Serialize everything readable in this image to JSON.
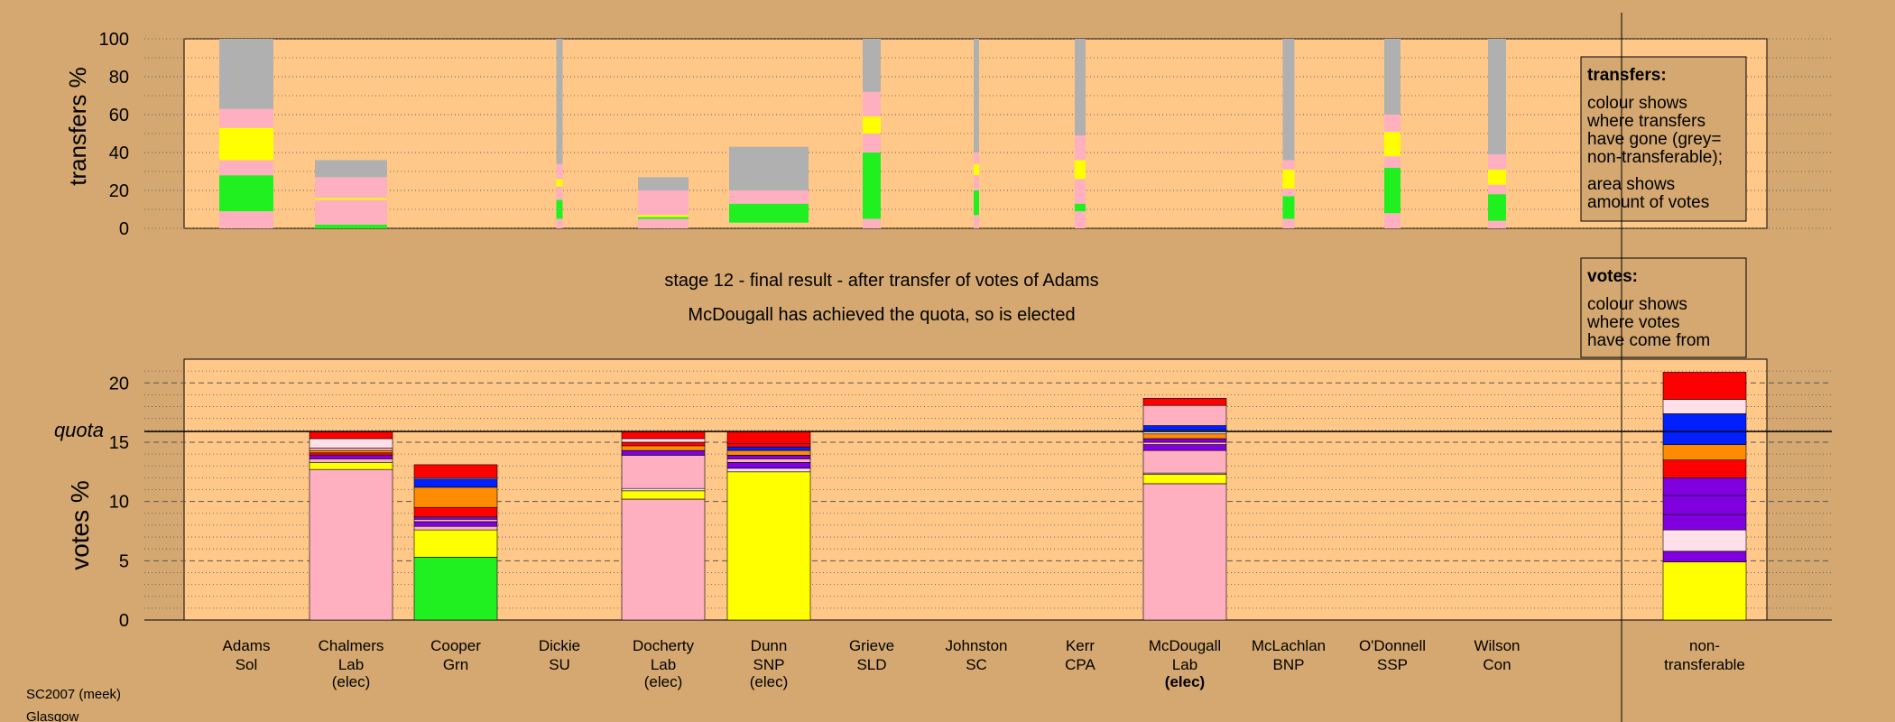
{
  "chart_data": [
    {
      "type": "bar",
      "stacked": true,
      "ylabel": "transfers %",
      "ylim": [
        0,
        100
      ],
      "yticks": [
        0,
        20,
        40,
        60,
        80,
        100
      ],
      "legend": {
        "title": "transfers:",
        "lines": [
          "colour shows",
          "where transfers",
          "have gone (grey=",
          "non-transferable);",
          "area shows",
          "amount of votes"
        ]
      },
      "note": "bar width shows amount of votes transferred",
      "bars": [
        {
          "candidate": "Adams",
          "width": 0.6,
          "segments": [
            {
              "color": "#ffb0c0",
              "from": 0,
              "to": 9
            },
            {
              "color": "#20f020",
              "from": 9,
              "to": 28
            },
            {
              "color": "#ffb0c0",
              "from": 28,
              "to": 36
            },
            {
              "color": "#ffff00",
              "from": 36,
              "to": 53
            },
            {
              "color": "#ffb0c0",
              "from": 53,
              "to": 63
            },
            {
              "color": "#b0b0b0",
              "from": 63,
              "to": 100
            }
          ]
        },
        {
          "candidate": "Chalmers",
          "width": 0.8,
          "segments": [
            {
              "color": "#20f020",
              "from": 0,
              "to": 2
            },
            {
              "color": "#ffb0c0",
              "from": 2,
              "to": 15
            },
            {
              "color": "#ffff00",
              "from": 15,
              "to": 16
            },
            {
              "color": "#ffb0c0",
              "from": 16,
              "to": 27
            },
            {
              "color": "#b0b0b0",
              "from": 27,
              "to": 36
            }
          ]
        },
        {
          "candidate": "Dickie",
          "width": 0.07,
          "segments": [
            {
              "color": "#ffb0c0",
              "from": 0,
              "to": 5
            },
            {
              "color": "#20f020",
              "from": 5,
              "to": 15
            },
            {
              "color": "#ffb0c0",
              "from": 15,
              "to": 22
            },
            {
              "color": "#ffff00",
              "from": 22,
              "to": 26
            },
            {
              "color": "#ffb0c0",
              "from": 26,
              "to": 34
            },
            {
              "color": "#b0b0b0",
              "from": 34,
              "to": 100
            }
          ]
        },
        {
          "candidate": "Docherty",
          "width": 0.56,
          "segments": [
            {
              "color": "#ffb0c0",
              "from": 0,
              "to": 5
            },
            {
              "color": "#20f020",
              "from": 5,
              "to": 6
            },
            {
              "color": "#ffff00",
              "from": 6,
              "to": 7
            },
            {
              "color": "#ffb0c0",
              "from": 7,
              "to": 20
            },
            {
              "color": "#b0b0b0",
              "from": 20,
              "to": 27
            }
          ]
        },
        {
          "candidate": "Dunn",
          "width": 0.88,
          "segments": [
            {
              "color": "#20f020",
              "from": 3,
              "to": 13
            },
            {
              "color": "#ffb0c0",
              "from": 13,
              "to": 20
            },
            {
              "color": "#b0b0b0",
              "from": 20,
              "to": 43
            }
          ]
        },
        {
          "candidate": "Grieve",
          "width": 0.2,
          "segments": [
            {
              "color": "#ffb0c0",
              "from": 0,
              "to": 5
            },
            {
              "color": "#20f020",
              "from": 5,
              "to": 40
            },
            {
              "color": "#ffb0c0",
              "from": 40,
              "to": 50
            },
            {
              "color": "#ffff00",
              "from": 50,
              "to": 59
            },
            {
              "color": "#ffb0c0",
              "from": 59,
              "to": 72
            },
            {
              "color": "#b0b0b0",
              "from": 72,
              "to": 100
            }
          ]
        },
        {
          "candidate": "Johnston",
          "width": 0.06,
          "segments": [
            {
              "color": "#ffb0c0",
              "from": 0,
              "to": 7
            },
            {
              "color": "#20f020",
              "from": 7,
              "to": 20
            },
            {
              "color": "#ffb0c0",
              "from": 20,
              "to": 28
            },
            {
              "color": "#ffff00",
              "from": 28,
              "to": 34
            },
            {
              "color": "#ffb0c0",
              "from": 34,
              "to": 40
            },
            {
              "color": "#b0b0b0",
              "from": 40,
              "to": 100
            }
          ]
        },
        {
          "candidate": "Kerr",
          "width": 0.12,
          "segments": [
            {
              "color": "#ffb0c0",
              "from": 0,
              "to": 9
            },
            {
              "color": "#20f020",
              "from": 9,
              "to": 13
            },
            {
              "color": "#ffb0c0",
              "from": 13,
              "to": 26
            },
            {
              "color": "#ffff00",
              "from": 26,
              "to": 36
            },
            {
              "color": "#ffb0c0",
              "from": 36,
              "to": 49
            },
            {
              "color": "#b0b0b0",
              "from": 49,
              "to": 100
            }
          ]
        },
        {
          "candidate": "McLachlan",
          "width": 0.13,
          "segments": [
            {
              "color": "#ffb0c0",
              "from": 0,
              "to": 5
            },
            {
              "color": "#20f020",
              "from": 5,
              "to": 17
            },
            {
              "color": "#ffb0c0",
              "from": 17,
              "to": 21
            },
            {
              "color": "#ffff00",
              "from": 21,
              "to": 31
            },
            {
              "color": "#ffb0c0",
              "from": 31,
              "to": 36
            },
            {
              "color": "#b0b0b0",
              "from": 36,
              "to": 100
            }
          ]
        },
        {
          "candidate": "O'Donnell",
          "width": 0.18,
          "segments": [
            {
              "color": "#ffb0c0",
              "from": 0,
              "to": 8
            },
            {
              "color": "#20f020",
              "from": 8,
              "to": 32
            },
            {
              "color": "#ffb0c0",
              "from": 32,
              "to": 38
            },
            {
              "color": "#ffff00",
              "from": 38,
              "to": 51
            },
            {
              "color": "#ffb0c0",
              "from": 51,
              "to": 60
            },
            {
              "color": "#b0b0b0",
              "from": 60,
              "to": 100
            }
          ]
        },
        {
          "candidate": "Wilson",
          "width": 0.2,
          "segments": [
            {
              "color": "#ffb0c0",
              "from": 0,
              "to": 4
            },
            {
              "color": "#20f020",
              "from": 4,
              "to": 18
            },
            {
              "color": "#ffb0c0",
              "from": 18,
              "to": 23
            },
            {
              "color": "#ffff00",
              "from": 23,
              "to": 31
            },
            {
              "color": "#ffb0c0",
              "from": 31,
              "to": 39
            },
            {
              "color": "#b0b0b0",
              "from": 39,
              "to": 100
            }
          ]
        }
      ]
    },
    {
      "type": "bar",
      "stacked": true,
      "title": "stage 12 - final result - after transfer of votes of Adams",
      "subtitle": "McDougall has achieved the quota, so is elected",
      "ylabel": "votes %",
      "ylim": [
        0,
        22
      ],
      "yticks": [
        0,
        5,
        10,
        15,
        20
      ],
      "quota": {
        "label": "quota",
        "value": 15.9
      },
      "legend": {
        "title": "votes:",
        "lines": [
          "colour shows",
          "where votes",
          "have come from"
        ]
      },
      "categories": [
        {
          "name": "Adams",
          "party": "Sol",
          "status": ""
        },
        {
          "name": "Chalmers",
          "party": "Lab",
          "status": "(elec)"
        },
        {
          "name": "Cooper",
          "party": "Grn",
          "status": ""
        },
        {
          "name": "Dickie",
          "party": "SU",
          "status": ""
        },
        {
          "name": "Docherty",
          "party": "Lab",
          "status": "(elec)"
        },
        {
          "name": "Dunn",
          "party": "SNP",
          "status": "(elec)"
        },
        {
          "name": "Grieve",
          "party": "SLD",
          "status": ""
        },
        {
          "name": "Johnston",
          "party": "SC",
          "status": ""
        },
        {
          "name": "Kerr",
          "party": "CPA",
          "status": ""
        },
        {
          "name": "McDougall",
          "party": "Lab",
          "status": "(elec)",
          "status_bold": true
        },
        {
          "name": "McLachlan",
          "party": "BNP",
          "status": ""
        },
        {
          "name": "O'Donnell",
          "party": "SSP",
          "status": ""
        },
        {
          "name": "Wilson",
          "party": "Con",
          "status": ""
        },
        {
          "name": "non-",
          "party": "transferable",
          "status": ""
        }
      ],
      "bars": [
        {
          "candidate": "Chalmers",
          "segments": [
            {
              "color": "#ffb0c0",
              "from": 0,
              "to": 12.7
            },
            {
              "color": "#ffff00",
              "from": 12.7,
              "to": 13.3
            },
            {
              "color": "#ffb0c0",
              "from": 13.3,
              "to": 13.6
            },
            {
              "color": "#8000e0",
              "from": 13.6,
              "to": 13.9
            },
            {
              "color": "#ff0000",
              "from": 13.9,
              "to": 14.1
            },
            {
              "color": "#ff8c00",
              "from": 14.1,
              "to": 14.3
            },
            {
              "color": "#ffb0c0",
              "from": 14.3,
              "to": 14.5
            },
            {
              "color": "#ffe0e8",
              "from": 14.5,
              "to": 15.3
            },
            {
              "color": "#ff0000",
              "from": 15.3,
              "to": 15.9
            }
          ]
        },
        {
          "candidate": "Cooper",
          "segments": [
            {
              "color": "#20f020",
              "from": 0,
              "to": 5.3
            },
            {
              "color": "#ffff00",
              "from": 5.3,
              "to": 7.6
            },
            {
              "color": "#ffb0c0",
              "from": 7.6,
              "to": 7.9
            },
            {
              "color": "#8000e0",
              "from": 7.9,
              "to": 8.3
            },
            {
              "color": "#ffb0c0",
              "from": 8.3,
              "to": 8.5
            },
            {
              "color": "#8000e0",
              "from": 8.5,
              "to": 8.7
            },
            {
              "color": "#ff0000",
              "from": 8.7,
              "to": 9.5
            },
            {
              "color": "#ff8c00",
              "from": 9.5,
              "to": 11.2
            },
            {
              "color": "#0020ff",
              "from": 11.2,
              "to": 11.9
            },
            {
              "color": "#ffe0e8",
              "from": 11.9,
              "to": 12.0
            },
            {
              "color": "#ff0000",
              "from": 12.0,
              "to": 13.1
            }
          ]
        },
        {
          "candidate": "Docherty",
          "segments": [
            {
              "color": "#ffb0c0",
              "from": 0,
              "to": 10.2
            },
            {
              "color": "#ffff00",
              "from": 10.2,
              "to": 10.9
            },
            {
              "color": "#ffe0e8",
              "from": 10.9,
              "to": 11.1
            },
            {
              "color": "#ffb0c0",
              "from": 11.1,
              "to": 13.9
            },
            {
              "color": "#8000e0",
              "from": 13.9,
              "to": 14.3
            },
            {
              "color": "#ff8c00",
              "from": 14.3,
              "to": 14.7
            },
            {
              "color": "#ff0000",
              "from": 14.7,
              "to": 15.0
            },
            {
              "color": "#ffe0e8",
              "from": 15.0,
              "to": 15.3
            },
            {
              "color": "#ff0000",
              "from": 15.3,
              "to": 15.9
            }
          ]
        },
        {
          "candidate": "Dunn",
          "segments": [
            {
              "color": "#ffff00",
              "from": 0,
              "to": 12.5
            },
            {
              "color": "#ffe0e8",
              "from": 12.5,
              "to": 12.8
            },
            {
              "color": "#8000e0",
              "from": 12.8,
              "to": 13.3
            },
            {
              "color": "#ffb0c0",
              "from": 13.3,
              "to": 13.6
            },
            {
              "color": "#8000e0",
              "from": 13.6,
              "to": 13.9
            },
            {
              "color": "#ff8c00",
              "from": 13.9,
              "to": 14.3
            },
            {
              "color": "#0020ff",
              "from": 14.3,
              "to": 14.6
            },
            {
              "color": "#ff0000",
              "from": 14.6,
              "to": 14.9
            },
            {
              "color": "#ff0000",
              "from": 14.9,
              "to": 15.9
            }
          ]
        },
        {
          "candidate": "McDougall",
          "segments": [
            {
              "color": "#ffb0c0",
              "from": 0,
              "to": 11.5
            },
            {
              "color": "#ffff00",
              "from": 11.5,
              "to": 12.3
            },
            {
              "color": "#ffe0e8",
              "from": 12.3,
              "to": 12.4
            },
            {
              "color": "#ffb0c0",
              "from": 12.4,
              "to": 14.3
            },
            {
              "color": "#8000e0",
              "from": 14.3,
              "to": 14.8
            },
            {
              "color": "#ffb0c0",
              "from": 14.8,
              "to": 15.0
            },
            {
              "color": "#8000e0",
              "from": 15.0,
              "to": 15.3
            },
            {
              "color": "#ff8c00",
              "from": 15.3,
              "to": 15.7
            },
            {
              "color": "#ffe0e8",
              "from": 15.7,
              "to": 16.0
            },
            {
              "color": "#0020ff",
              "from": 16.0,
              "to": 16.4
            },
            {
              "color": "#ffb0c0",
              "from": 16.4,
              "to": 18.1
            },
            {
              "color": "#ff0000",
              "from": 18.1,
              "to": 18.7
            }
          ]
        },
        {
          "candidate": "non-transferable",
          "segments": [
            {
              "color": "#ffff00",
              "from": 0,
              "to": 4.9
            },
            {
              "color": "#8000e0",
              "from": 4.9,
              "to": 5.8
            },
            {
              "color": "#ffe0e8",
              "from": 5.8,
              "to": 7.6
            },
            {
              "color": "#8000e0",
              "from": 7.6,
              "to": 8.9
            },
            {
              "color": "#8000e0",
              "from": 8.9,
              "to": 10.5
            },
            {
              "color": "#8000e0",
              "from": 10.5,
              "to": 12.0
            },
            {
              "color": "#ff0000",
              "from": 12.0,
              "to": 13.5
            },
            {
              "color": "#ff8c00",
              "from": 13.5,
              "to": 14.8
            },
            {
              "color": "#0020ff",
              "from": 14.8,
              "to": 17.4
            },
            {
              "color": "#ffe0e8",
              "from": 17.4,
              "to": 18.6
            },
            {
              "color": "#ff0000",
              "from": 18.6,
              "to": 20.9
            }
          ]
        }
      ]
    }
  ],
  "footer": {
    "line1": "SC2007 (meek)",
    "line2": "Glasgow"
  }
}
